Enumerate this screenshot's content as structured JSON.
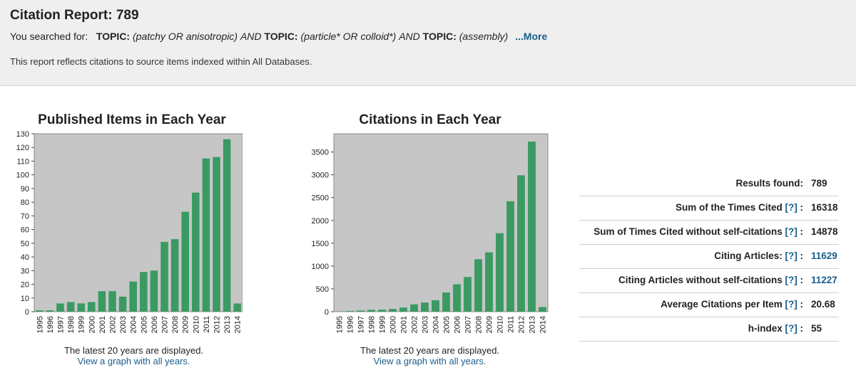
{
  "header": {
    "title": "Citation Report: 789",
    "search_prefix": "You searched for:",
    "topic_label": "TOPIC:",
    "q1": "(patchy OR anisotropic)",
    "and": "AND",
    "q2": "(particle* OR colloid*)",
    "q3": "(assembly)",
    "more": "...More",
    "reflect": "This report reflects citations to source items indexed within All Databases."
  },
  "charts": {
    "left": {
      "title": "Published Items in Each Year",
      "note": "The latest 20 years are displayed.",
      "link": "View a graph with all years."
    },
    "right": {
      "title": "Citations in Each Year",
      "note": "The latest 20 years are displayed.",
      "link": "View a graph with all years."
    }
  },
  "stats": {
    "results_label": "Results found:",
    "results_value": "789",
    "sum_label": "Sum of the Times Cited",
    "sum_value": "16318",
    "sum_noself_label": "Sum of Times Cited without self-citations",
    "sum_noself_value": "14878",
    "citing_label": "Citing Articles:",
    "citing_value": "11629",
    "citing_noself_label": "Citing Articles without self-citations",
    "citing_noself_value": "11227",
    "avg_label": "Average Citations per Item",
    "avg_value": "20.68",
    "h_label": "h-index",
    "h_value": "55",
    "help": "[?]",
    "colon": ":"
  },
  "chart_data": [
    {
      "type": "bar",
      "title": "Published Items in Each Year",
      "categories": [
        "1995",
        "1996",
        "1997",
        "1998",
        "1999",
        "2000",
        "2001",
        "2002",
        "2003",
        "2004",
        "2005",
        "2006",
        "2007",
        "2008",
        "2009",
        "2010",
        "2011",
        "2012",
        "2013",
        "2014"
      ],
      "values": [
        1,
        1,
        6,
        7,
        6,
        7,
        15,
        15,
        11,
        22,
        29,
        30,
        51,
        53,
        73,
        87,
        112,
        113,
        126,
        6
      ],
      "ylim": [
        0,
        130
      ],
      "yticks": [
        0,
        10,
        20,
        30,
        40,
        50,
        60,
        70,
        80,
        90,
        100,
        110,
        120,
        130
      ],
      "color": "#3a9a62",
      "background": "#c6c6c6"
    },
    {
      "type": "bar",
      "title": "Citations in Each Year",
      "categories": [
        "1995",
        "1996",
        "1997",
        "1998",
        "1999",
        "2000",
        "2001",
        "2002",
        "2003",
        "2004",
        "2005",
        "2006",
        "2007",
        "2008",
        "2009",
        "2010",
        "2011",
        "2012",
        "2013",
        "2014"
      ],
      "values": [
        5,
        15,
        25,
        40,
        45,
        60,
        90,
        160,
        200,
        250,
        420,
        600,
        760,
        1150,
        1300,
        1720,
        2420,
        2990,
        3730,
        100
      ],
      "ylim": [
        0,
        3900
      ],
      "yticks": [
        0,
        500,
        1000,
        1500,
        2000,
        2500,
        3000,
        3500
      ],
      "color": "#3a9a62",
      "background": "#c6c6c6"
    }
  ]
}
